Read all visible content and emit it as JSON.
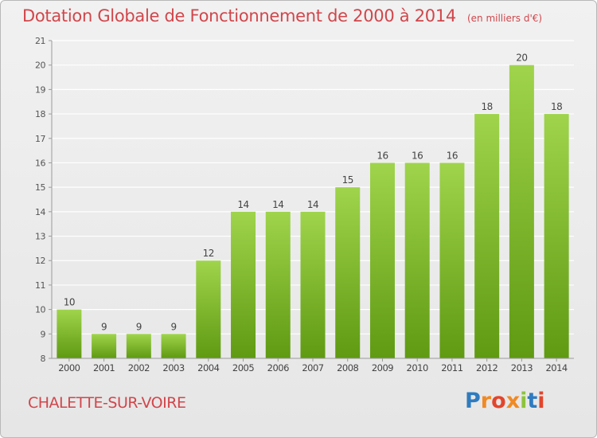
{
  "header": {
    "title": "Dotation Globale de Fonctionnement de 2000 à 2014",
    "unit": "(en milliers d'€)"
  },
  "footer": {
    "commune": "CHALETTE-SUR-VOIRE",
    "brand": "Proxiti"
  },
  "colors": {
    "title": "#d1464b",
    "bar_light": "#9fd44c",
    "bar_dark": "#5f9a12",
    "background": "#ececec",
    "grid": "#ffffff"
  },
  "chart_data": {
    "type": "bar",
    "categories": [
      "2000",
      "2001",
      "2002",
      "2003",
      "2004",
      "2005",
      "2006",
      "2007",
      "2008",
      "2009",
      "2010",
      "2011",
      "2012",
      "2013",
      "2014"
    ],
    "values": [
      10,
      9,
      9,
      9,
      12,
      14,
      14,
      14,
      15,
      16,
      16,
      16,
      18,
      20,
      18
    ],
    "data_labels": [
      "10",
      "9",
      "9",
      "9",
      "12",
      "14",
      "14",
      "14",
      "15",
      "16",
      "16",
      "16",
      "18",
      "20",
      "18"
    ],
    "title": "Dotation Globale de Fonctionnement de 2000 à 2014",
    "ylabel": "",
    "xlabel": "",
    "ylim": [
      8,
      21
    ],
    "yticks": [
      8,
      9,
      10,
      11,
      12,
      13,
      14,
      15,
      16,
      17,
      18,
      19,
      20,
      21
    ],
    "grid": true
  }
}
